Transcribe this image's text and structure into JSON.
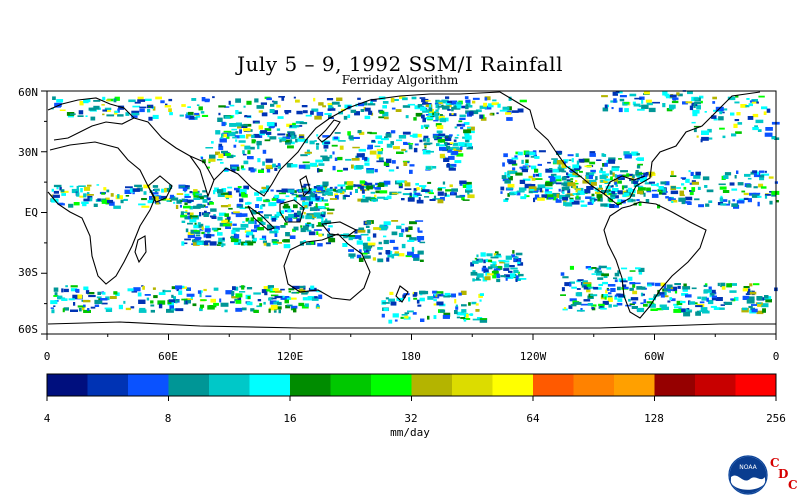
{
  "title": "July 5 – 9, 1992 SSM/I Rainfall",
  "subtitle": "Ferriday Algorithm",
  "lat_labels": [
    "60N",
    "30N",
    "EQ",
    "30S",
    "60S"
  ],
  "lon_labels": [
    "0",
    "60E",
    "120E",
    "180",
    "120W",
    "60W",
    "0"
  ],
  "colorbar": {
    "colors": [
      "#000f7e",
      "#0033b4",
      "#0a52ff",
      "#009696",
      "#00c8c8",
      "#00ffff",
      "#008c00",
      "#00c800",
      "#00ff00",
      "#b4b400",
      "#dcdc00",
      "#ffff00",
      "#ff5a00",
      "#ff8200",
      "#ffa000",
      "#960000",
      "#c80000",
      "#ff0000"
    ],
    "tick_labels": [
      "4",
      "8",
      "16",
      "32",
      "64",
      "128",
      "256"
    ],
    "units": "mm/day"
  },
  "logo": {
    "text": "NOAA",
    "letters": [
      "C",
      "D",
      "C"
    ]
  }
}
